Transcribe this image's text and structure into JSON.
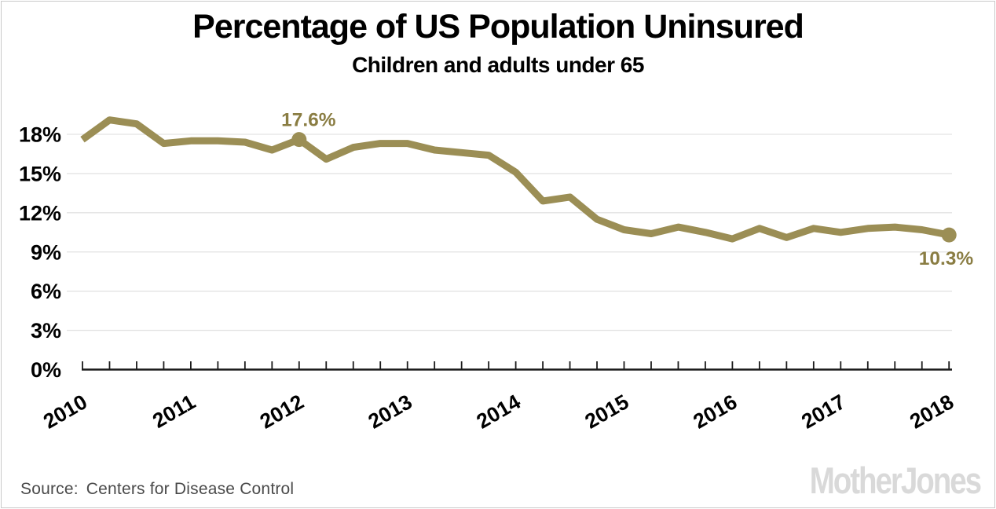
{
  "header": {
    "title": "Percentage of US Population Uninsured",
    "subtitle": "Children and adults under 65"
  },
  "footer": {
    "source_label": "Source:",
    "source_name": "Centers for Disease Control",
    "brand_logo": "MotherJones"
  },
  "chart_data": {
    "type": "line",
    "title": "Percentage of US Population Uninsured",
    "subtitle": "Children and adults under 65",
    "series_name": "Percent uninsured (children and adults under 65)",
    "x_unit": "year (quarterly points)",
    "x": [
      2010,
      2010.25,
      2010.5,
      2010.75,
      2011,
      2011.25,
      2011.5,
      2011.75,
      2012,
      2012.25,
      2012.5,
      2012.75,
      2013,
      2013.25,
      2013.5,
      2013.75,
      2014,
      2014.25,
      2014.5,
      2014.75,
      2015,
      2015.25,
      2015.5,
      2015.75,
      2016,
      2016.25,
      2016.5,
      2016.75,
      2017,
      2017.25,
      2017.5,
      2017.75,
      2018
    ],
    "values": [
      17.6,
      19.1,
      18.8,
      17.3,
      17.5,
      17.5,
      17.4,
      16.8,
      17.6,
      16.1,
      17.0,
      17.3,
      17.3,
      16.8,
      16.6,
      16.4,
      15.1,
      12.9,
      13.2,
      11.5,
      10.7,
      10.4,
      10.9,
      10.5,
      10.0,
      10.8,
      10.1,
      10.8,
      10.5,
      10.8,
      10.9,
      10.7,
      10.3
    ],
    "x_tick_labels": [
      "2010",
      "2011",
      "2012",
      "2013",
      "2014",
      "2015",
      "2016",
      "2017",
      "2018"
    ],
    "y_ticks": [
      {
        "value": 0,
        "label": "0%"
      },
      {
        "value": 3,
        "label": "3%"
      },
      {
        "value": 6,
        "label": "6%"
      },
      {
        "value": 9,
        "label": "9%"
      },
      {
        "value": 12,
        "label": "12%"
      },
      {
        "value": 15,
        "label": "15%"
      },
      {
        "value": 18,
        "label": "18%"
      }
    ],
    "xlim": [
      2010,
      2018
    ],
    "ylim": [
      0,
      20
    ],
    "grid": "horizontal",
    "legend": "none",
    "annotations": [
      {
        "x": 2012,
        "value": 17.6,
        "label": "17.6%",
        "placement": "above"
      },
      {
        "x": 2018,
        "value": 10.3,
        "label": "10.3%",
        "placement": "below"
      }
    ],
    "colors": {
      "line": "#9b8e55",
      "marker": "#9b8e55",
      "annotation_text": "#8a7d43",
      "gridline": "#e3e3e3",
      "axis": "#1a1a1a",
      "tick_label": "#000000"
    }
  }
}
